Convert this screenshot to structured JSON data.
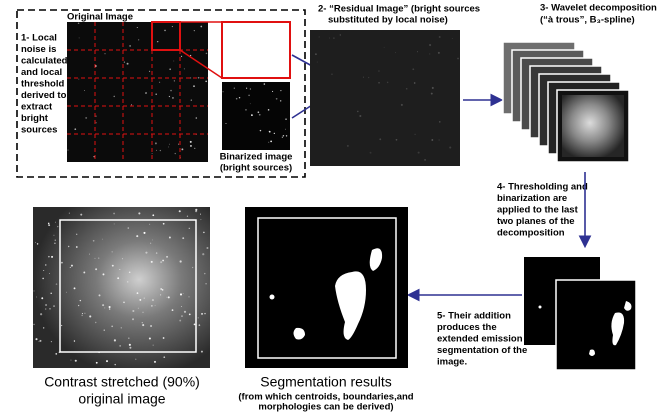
{
  "step1": {
    "title": "Original Image",
    "text": [
      "1- Local",
      "noise is",
      "calculated",
      "and local",
      "threshold",
      "derived to",
      "extract",
      "bright",
      "sources"
    ],
    "binarized_caption": [
      "Binarized image",
      "(bright sources)"
    ]
  },
  "step2": {
    "caption": [
      "2- “Residual Image” (bright sources",
      "substituted by local noise)"
    ]
  },
  "step3": {
    "caption": [
      "3- Wavelet decomposition",
      "(“à trous”, B₃-spline)"
    ]
  },
  "step4": {
    "caption": [
      "4- Thresholding and",
      "binarization are",
      "applied to the last",
      "two planes of the",
      "decomposition"
    ]
  },
  "step5": {
    "caption": [
      "5- Their addition",
      "produces the",
      "extended emission",
      "segmentation of the",
      "image."
    ]
  },
  "segmentation": {
    "title": "Segmentation results",
    "subtitle": [
      "(from which centroids, boundaries,and",
      "morphologies can be derived)"
    ]
  },
  "original": {
    "caption": [
      "Contrast stretched (90%)",
      "original image"
    ]
  }
}
